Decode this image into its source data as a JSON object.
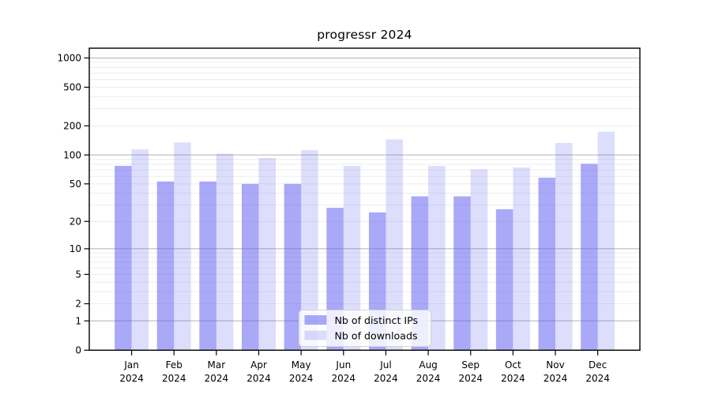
{
  "title": "progressr 2024",
  "chart_data": {
    "type": "bar",
    "title": "progressr 2024",
    "categories": [
      "Jan",
      "Feb",
      "Mar",
      "Apr",
      "May",
      "Jun",
      "Jul",
      "Aug",
      "Sep",
      "Oct",
      "Nov",
      "Dec"
    ],
    "category_year": "2024",
    "series": [
      {
        "name": "Nb of distinct IPs",
        "color": "rgba(99,99,243,0.55)",
        "values": [
          77,
          53,
          53,
          50,
          50,
          28,
          25,
          37,
          37,
          27,
          58,
          81
        ]
      },
      {
        "name": "Nb of downloads",
        "color": "rgba(99,99,243,0.22)",
        "values": [
          114,
          135,
          103,
          93,
          112,
          77,
          145,
          77,
          71,
          74,
          133,
          174
        ]
      }
    ],
    "xlabel": "",
    "ylabel": "",
    "y_scale": "log1p",
    "yticks": [
      0,
      1,
      2,
      5,
      10,
      20,
      50,
      100,
      200,
      500,
      1000
    ],
    "ylim": [
      0,
      1250
    ],
    "grid": true,
    "legend_position": "bottom-center",
    "colors": {
      "grid_major": "#b0b0b0",
      "grid_minor": "#ebebeb",
      "axis_frame": "#000000",
      "tick_text": "#000000",
      "legend_bg": "rgba(255,255,255,0.8)",
      "legend_border": "#d5d5d5"
    }
  }
}
